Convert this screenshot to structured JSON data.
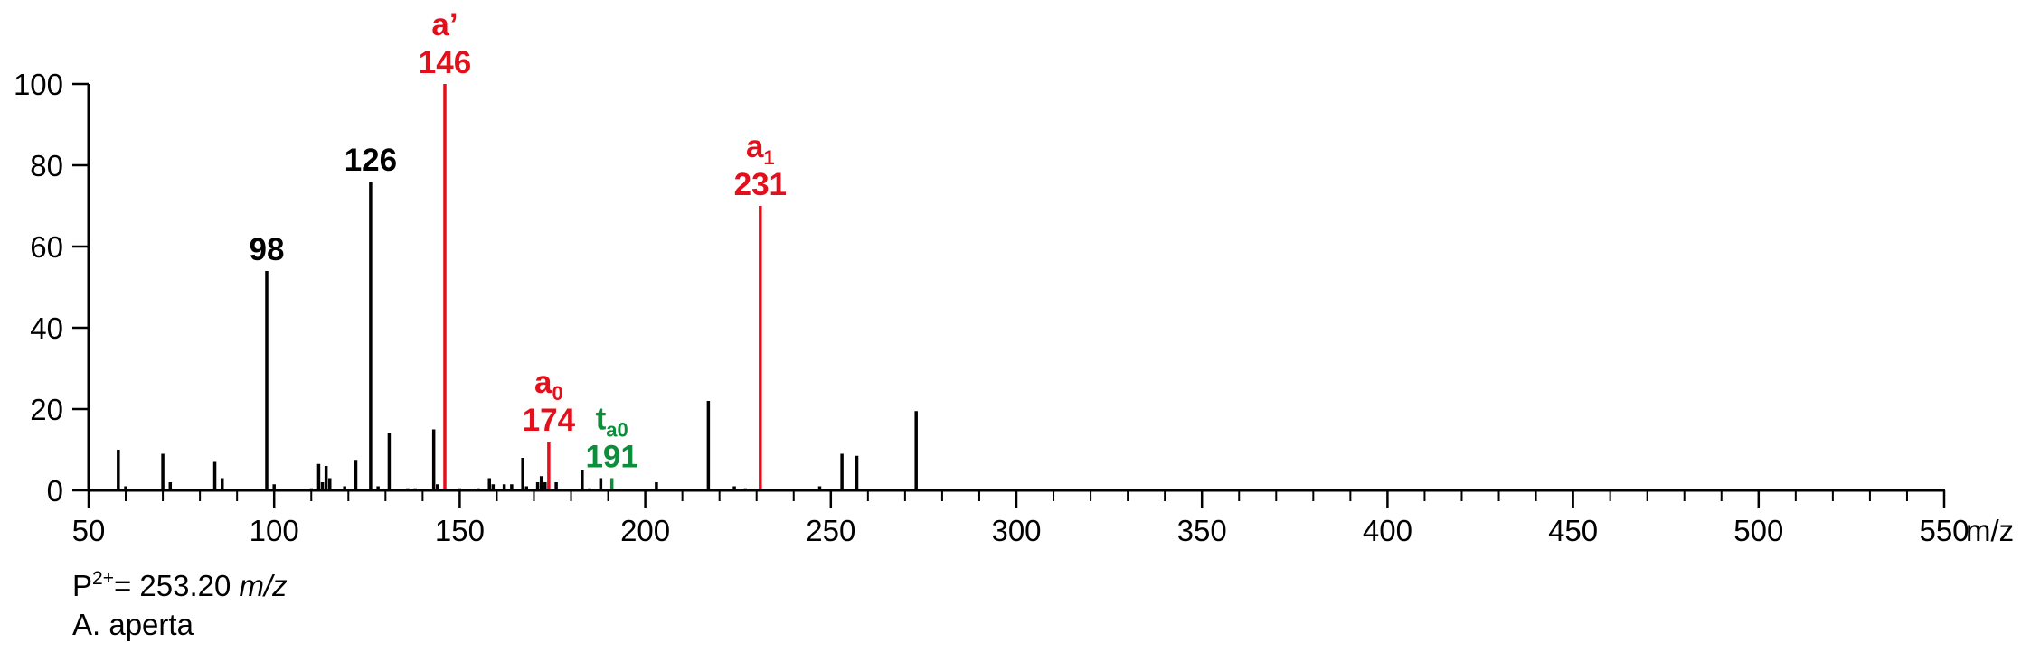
{
  "chart_data": {
    "type": "bar",
    "xlabel": "m/z",
    "xlim": [
      50,
      550
    ],
    "ylim": [
      0,
      100
    ],
    "xticks": [
      50,
      100,
      150,
      200,
      250,
      300,
      350,
      400,
      450,
      500,
      550
    ],
    "xtick_labels": [
      "50",
      "100",
      "150",
      "200",
      "250",
      "300",
      "350",
      "400",
      "450",
      "500",
      "550"
    ],
    "yticks": [
      0,
      20,
      40,
      60,
      80,
      100
    ],
    "ytick_labels": [
      "0",
      "20",
      "40",
      "60",
      "80",
      "100"
    ],
    "colors": {
      "default": "#000000",
      "a_ion": "#e3101c",
      "t_ion": "#0c8f3a"
    },
    "peaks": [
      {
        "x": 58,
        "y": 10,
        "ion": "default"
      },
      {
        "x": 60,
        "y": 1,
        "ion": "default"
      },
      {
        "x": 70,
        "y": 9,
        "ion": "default"
      },
      {
        "x": 72,
        "y": 2,
        "ion": "default"
      },
      {
        "x": 84,
        "y": 7,
        "ion": "default"
      },
      {
        "x": 86,
        "y": 3,
        "ion": "default"
      },
      {
        "x": 98,
        "y": 54,
        "ion": "default"
      },
      {
        "x": 100,
        "y": 1.5,
        "ion": "default"
      },
      {
        "x": 110,
        "y": 0.5,
        "ion": "default"
      },
      {
        "x": 112,
        "y": 6.5,
        "ion": "default"
      },
      {
        "x": 113,
        "y": 2,
        "ion": "default"
      },
      {
        "x": 114,
        "y": 6,
        "ion": "default"
      },
      {
        "x": 115,
        "y": 3,
        "ion": "default"
      },
      {
        "x": 119,
        "y": 1,
        "ion": "default"
      },
      {
        "x": 122,
        "y": 7.5,
        "ion": "default"
      },
      {
        "x": 126,
        "y": 76,
        "ion": "default"
      },
      {
        "x": 128,
        "y": 1,
        "ion": "default"
      },
      {
        "x": 131,
        "y": 14,
        "ion": "default"
      },
      {
        "x": 136,
        "y": 0.5,
        "ion": "default"
      },
      {
        "x": 138,
        "y": 0.5,
        "ion": "default"
      },
      {
        "x": 143,
        "y": 15,
        "ion": "default"
      },
      {
        "x": 144,
        "y": 1.5,
        "ion": "default"
      },
      {
        "x": 146,
        "y": 100,
        "ion": "a_ion"
      },
      {
        "x": 150,
        "y": 0.5,
        "ion": "default"
      },
      {
        "x": 155,
        "y": 0.5,
        "ion": "default"
      },
      {
        "x": 158,
        "y": 3,
        "ion": "default"
      },
      {
        "x": 159,
        "y": 1.5,
        "ion": "default"
      },
      {
        "x": 162,
        "y": 1.5,
        "ion": "default"
      },
      {
        "x": 164,
        "y": 1.5,
        "ion": "default"
      },
      {
        "x": 167,
        "y": 8,
        "ion": "default"
      },
      {
        "x": 168,
        "y": 1,
        "ion": "default"
      },
      {
        "x": 171,
        "y": 2,
        "ion": "default"
      },
      {
        "x": 172,
        "y": 3.5,
        "ion": "default"
      },
      {
        "x": 173,
        "y": 2,
        "ion": "default"
      },
      {
        "x": 174,
        "y": 12,
        "ion": "a_ion"
      },
      {
        "x": 176,
        "y": 2,
        "ion": "default"
      },
      {
        "x": 183,
        "y": 5,
        "ion": "default"
      },
      {
        "x": 185,
        "y": 0.5,
        "ion": "default"
      },
      {
        "x": 188,
        "y": 3,
        "ion": "default"
      },
      {
        "x": 191,
        "y": 3,
        "ion": "t_ion"
      },
      {
        "x": 203,
        "y": 2,
        "ion": "default"
      },
      {
        "x": 217,
        "y": 22,
        "ion": "default"
      },
      {
        "x": 224,
        "y": 1,
        "ion": "default"
      },
      {
        "x": 227,
        "y": 0.5,
        "ion": "default"
      },
      {
        "x": 231,
        "y": 70,
        "ion": "a_ion"
      },
      {
        "x": 247,
        "y": 1,
        "ion": "default"
      },
      {
        "x": 253,
        "y": 9,
        "ion": "default"
      },
      {
        "x": 257,
        "y": 8.5,
        "ion": "default"
      },
      {
        "x": 273,
        "y": 19.5,
        "ion": "default"
      }
    ],
    "annotations": [
      {
        "x": 98,
        "y": 54,
        "ion": "default",
        "main": "98",
        "top": "",
        "top_sub": ""
      },
      {
        "x": 126,
        "y": 76,
        "ion": "default",
        "main": "126",
        "top": "",
        "top_sub": ""
      },
      {
        "x": 146,
        "y": 100,
        "ion": "a_ion",
        "main": "146",
        "top": "a’",
        "top_sub": ""
      },
      {
        "x": 174,
        "y": 12,
        "ion": "a_ion",
        "main": "174",
        "top": "a",
        "top_sub": "0"
      },
      {
        "x": 191,
        "y": 3,
        "ion": "t_ion",
        "main": "191",
        "top": "t",
        "top_sub": "a0"
      },
      {
        "x": 231,
        "y": 70,
        "ion": "a_ion",
        "main": "231",
        "top": "a",
        "top_sub": "1"
      }
    ]
  },
  "caption": {
    "precursor_prefix": "P",
    "precursor_charge": "2+",
    "precursor_value": "= 253.20 ",
    "precursor_unit": "m/z",
    "species": "A. aperta"
  }
}
